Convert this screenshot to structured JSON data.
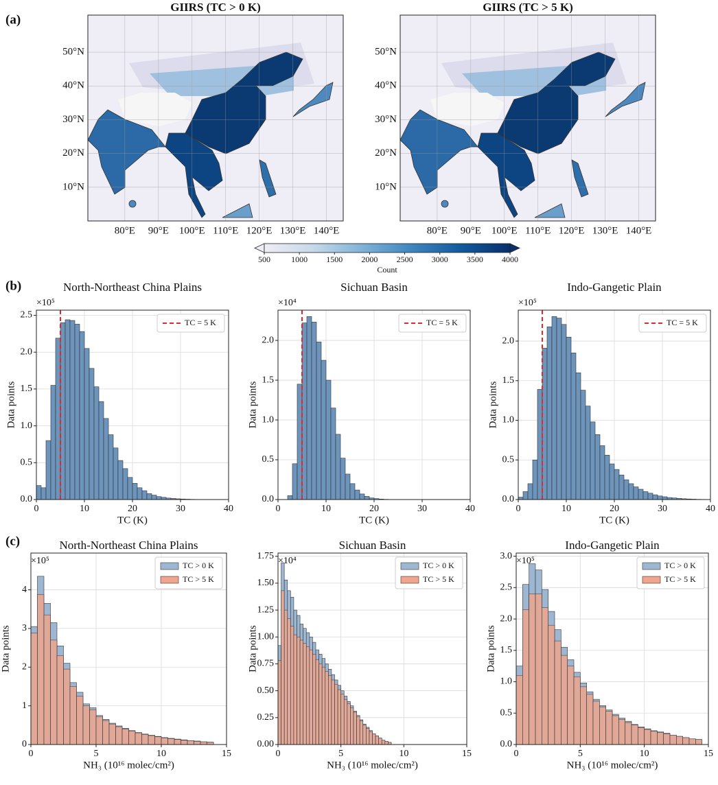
{
  "chart_data": [
    {
      "type": "map",
      "panel_label": "(a)",
      "title": "GIIRS (TC > 0 K)",
      "xlim": [
        69,
        145
      ],
      "ylim": [
        0,
        61
      ],
      "xticks": [
        {
          "value": 80,
          "label": "80°E"
        },
        {
          "value": 90,
          "label": "90°E"
        },
        {
          "value": 100,
          "label": "100°E"
        },
        {
          "value": 110,
          "label": "110°E"
        },
        {
          "value": 120,
          "label": "120°E"
        },
        {
          "value": 130,
          "label": "130°E"
        },
        {
          "value": 140,
          "label": "140°E"
        }
      ],
      "yticks": [
        {
          "value": 10,
          "label": "10°N"
        },
        {
          "value": 20,
          "label": "20°N"
        },
        {
          "value": 30,
          "label": "30°N"
        },
        {
          "value": 40,
          "label": "40°N"
        },
        {
          "value": 50,
          "label": "50°N"
        }
      ],
      "grid": true
    },
    {
      "type": "map",
      "title": "GIIRS (TC > 5 K)",
      "xlim": [
        69,
        145
      ],
      "ylim": [
        0,
        61
      ],
      "xticks": [
        {
          "value": 80,
          "label": "80°E"
        },
        {
          "value": 90,
          "label": "90°E"
        },
        {
          "value": 100,
          "label": "100°E"
        },
        {
          "value": 110,
          "label": "110°E"
        },
        {
          "value": 120,
          "label": "120°E"
        },
        {
          "value": 130,
          "label": "130°E"
        },
        {
          "value": 140,
          "label": "140°E"
        }
      ],
      "yticks": [
        {
          "value": 10,
          "label": "10°N"
        },
        {
          "value": 20,
          "label": "20°N"
        },
        {
          "value": 30,
          "label": "30°N"
        },
        {
          "value": 40,
          "label": "40°N"
        },
        {
          "value": 50,
          "label": "50°N"
        }
      ],
      "grid": true
    },
    {
      "type": "colorbar",
      "label": "Count",
      "lim": [
        500,
        4000
      ],
      "ticks": [
        500,
        1000,
        1500,
        2000,
        2500,
        3000,
        3500,
        4000
      ],
      "colors": [
        "#efedf5",
        "#c6d8ea",
        "#7fb2d8",
        "#3d86be",
        "#125a9f",
        "#08306b"
      ],
      "extend": "both"
    },
    {
      "type": "histogram",
      "panel_label": "(b)",
      "title": "North-Northeast China Plains",
      "xlabel": "TC (K)",
      "ylabel": "Data points",
      "y_multiplier": "×10⁵",
      "bins": [
        0,
        1,
        2,
        3,
        4,
        5,
        6,
        7,
        8,
        9,
        10,
        11,
        12,
        13,
        14,
        15,
        16,
        17,
        18,
        19,
        20,
        21,
        22,
        23,
        24,
        25,
        26,
        27,
        28,
        29,
        30,
        31,
        32,
        33,
        34,
        35,
        36,
        37,
        38,
        39,
        40
      ],
      "values": [
        0.19,
        0.16,
        0.8,
        1.55,
        2.19,
        2.4,
        2.44,
        2.43,
        2.38,
        2.28,
        2.05,
        1.78,
        1.53,
        1.33,
        1.1,
        0.88,
        0.7,
        0.53,
        0.42,
        0.3,
        0.22,
        0.16,
        0.12,
        0.08,
        0.06,
        0.04,
        0.03,
        0.02,
        0.015,
        0.01,
        0.007,
        0.005,
        0.003,
        0.002,
        0,
        0,
        0,
        0,
        0,
        0
      ],
      "color": "#6d94bb",
      "vline": {
        "value": 5,
        "name": "TC = 5 K",
        "color": "#e8262a"
      },
      "legend": "upper right",
      "xlim": [
        0,
        40
      ],
      "ylim": [
        0,
        2.57
      ],
      "xticks": [
        0,
        10,
        20,
        30,
        40
      ],
      "yticks": [
        {
          "value": 0,
          "label": "0.0"
        },
        {
          "value": 0.5,
          "label": "0.5"
        },
        {
          "value": 1,
          "label": "1.0"
        },
        {
          "value": 1.5,
          "label": "1.5"
        },
        {
          "value": 2,
          "label": "2.0"
        },
        {
          "value": 2.5,
          "label": "2.5"
        }
      ],
      "grid": true
    },
    {
      "type": "histogram",
      "title": "Sichuan Basin",
      "xlabel": "TC (K)",
      "ylabel": "Data points",
      "y_multiplier": "×10⁴",
      "bins": [
        0,
        1,
        2,
        3,
        4,
        5,
        6,
        7,
        8,
        9,
        10,
        11,
        12,
        13,
        14,
        15,
        16,
        17,
        18,
        19,
        20,
        21,
        22,
        23,
        24,
        25,
        26,
        27,
        28,
        29,
        30,
        31,
        32,
        33,
        34,
        35,
        36,
        37,
        38,
        39,
        40
      ],
      "values": [
        0,
        0,
        0.05,
        0.45,
        1.45,
        2.22,
        2.3,
        2.23,
        1.98,
        1.75,
        1.5,
        1.15,
        0.82,
        0.52,
        0.32,
        0.2,
        0.12,
        0.07,
        0.04,
        0.02,
        0.012,
        0.006,
        0.003,
        0,
        0,
        0,
        0,
        0,
        0,
        0,
        0,
        0,
        0,
        0,
        0,
        0,
        0,
        0,
        0,
        0
      ],
      "color": "#6d94bb",
      "vline": {
        "value": 5,
        "name": "TC = 5 K",
        "color": "#e8262a"
      },
      "legend": "upper right",
      "xlim": [
        0,
        40
      ],
      "ylim": [
        0,
        2.38
      ],
      "xticks": [
        0,
        10,
        20,
        30,
        40
      ],
      "yticks": [
        {
          "value": 0,
          "label": "0.0"
        },
        {
          "value": 0.5,
          "label": "0.5"
        },
        {
          "value": 1,
          "label": "1.0"
        },
        {
          "value": 1.5,
          "label": "1.5"
        },
        {
          "value": 2,
          "label": "2.0"
        }
      ],
      "grid": true
    },
    {
      "type": "histogram",
      "title": "Indo-Gangetic Plain",
      "xlabel": "TC (K)",
      "ylabel": "Data points",
      "y_multiplier": "×10⁵",
      "bins": [
        0,
        1,
        2,
        3,
        4,
        5,
        6,
        7,
        8,
        9,
        10,
        11,
        12,
        13,
        14,
        15,
        16,
        17,
        18,
        19,
        20,
        21,
        22,
        23,
        24,
        25,
        26,
        27,
        28,
        29,
        30,
        31,
        32,
        33,
        34,
        35,
        36,
        37,
        38,
        39,
        40
      ],
      "values": [
        0.03,
        0.1,
        0.2,
        0.5,
        1.39,
        1.91,
        2.18,
        2.31,
        2.29,
        2.21,
        2.05,
        1.85,
        1.6,
        1.38,
        1.18,
        0.98,
        0.82,
        0.68,
        0.56,
        0.45,
        0.38,
        0.31,
        0.25,
        0.2,
        0.16,
        0.13,
        0.1,
        0.08,
        0.06,
        0.045,
        0.035,
        0.025,
        0.02,
        0.015,
        0.01,
        0.007,
        0.005,
        0.003,
        0.002,
        0.001
      ],
      "color": "#6d94bb",
      "vline": {
        "value": 5,
        "name": "TC = 5 K",
        "color": "#e8262a"
      },
      "legend": "upper right",
      "xlim": [
        0,
        40
      ],
      "ylim": [
        0,
        2.39
      ],
      "xticks": [
        0,
        10,
        20,
        30,
        40
      ],
      "yticks": [
        {
          "value": 0,
          "label": "0.0"
        },
        {
          "value": 0.5,
          "label": "0.5"
        },
        {
          "value": 1,
          "label": "1.0"
        },
        {
          "value": 1.5,
          "label": "1.5"
        },
        {
          "value": 2,
          "label": "2.0"
        }
      ],
      "grid": true
    },
    {
      "type": "histogram",
      "panel_label": "(c)",
      "title": "North-Northeast China Plains",
      "xlabel": "NH₃ (10¹⁶ molec/cm²)",
      "ylabel": "Data points",
      "y_multiplier": "×10⁵",
      "bins": [
        0,
        0.5,
        1,
        1.5,
        2,
        2.5,
        3,
        3.5,
        4,
        4.5,
        5,
        5.5,
        6,
        6.5,
        7,
        7.5,
        8,
        8.5,
        9,
        9.5,
        10,
        10.5,
        11,
        11.5,
        12,
        12.5,
        13,
        13.5,
        14
      ],
      "series": [
        {
          "name": "TC > 0 K",
          "color": "#9db7d3",
          "values": [
            3.05,
            4.35,
            3.65,
            3.15,
            2.55,
            2.1,
            1.6,
            1.35,
            1.05,
            0.95,
            0.75,
            0.65,
            0.55,
            0.48,
            0.42,
            0.36,
            0.31,
            0.27,
            0.24,
            0.21,
            0.18,
            0.16,
            0.14,
            0.12,
            0.1,
            0.09,
            0.07,
            0.06
          ]
        },
        {
          "name": "TC > 5 K",
          "color": "#f0a58c",
          "values": [
            2.88,
            3.88,
            3.35,
            2.7,
            2.3,
            1.95,
            1.5,
            1.25,
            1.0,
            0.9,
            0.72,
            0.62,
            0.53,
            0.46,
            0.4,
            0.35,
            0.3,
            0.26,
            0.23,
            0.2,
            0.17,
            0.15,
            0.13,
            0.11,
            0.1,
            0.08,
            0.07,
            0.06
          ]
        }
      ],
      "legend": "upper right",
      "xlim": [
        0,
        15
      ],
      "ylim": [
        0,
        4.95
      ],
      "xticks": [
        0,
        5,
        10,
        15
      ],
      "yticks": [
        0,
        1,
        2,
        3,
        4
      ],
      "grid": true
    },
    {
      "type": "histogram",
      "title": "Sichuan Basin",
      "xlabel": "NH₃ (10¹⁶ molec/cm²)",
      "ylabel": "Data points",
      "y_multiplier": "×10⁴",
      "bins": [
        0,
        0.25,
        0.5,
        0.75,
        1,
        1.25,
        1.5,
        1.75,
        2,
        2.25,
        2.5,
        2.75,
        3,
        3.25,
        3.5,
        3.75,
        4,
        4.25,
        4.5,
        4.75,
        5,
        5.25,
        5.5,
        5.75,
        6,
        6.25,
        6.5,
        6.75,
        7,
        7.25,
        7.5,
        7.75,
        8,
        8.25,
        8.5,
        8.75,
        9
      ],
      "series": [
        {
          "name": "TC > 0 K",
          "color": "#9db7d3",
          "values": [
            0.92,
            1.69,
            1.53,
            1.43,
            1.37,
            1.25,
            1.2,
            1.12,
            1.08,
            1.04,
            1.0,
            0.95,
            0.88,
            0.84,
            0.8,
            0.75,
            0.7,
            0.65,
            0.6,
            0.55,
            0.5,
            0.45,
            0.4,
            0.36,
            0.31,
            0.27,
            0.23,
            0.19,
            0.16,
            0.13,
            0.1,
            0.08,
            0.06,
            0.04,
            0.03,
            0.02
          ]
        },
        {
          "name": "TC > 5 K",
          "color": "#f0a58c",
          "values": [
            0.78,
            1.43,
            1.25,
            1.17,
            1.1,
            1.02,
            1.0,
            0.97,
            0.94,
            0.91,
            0.88,
            0.84,
            0.79,
            0.75,
            0.72,
            0.68,
            0.64,
            0.6,
            0.56,
            0.51,
            0.47,
            0.42,
            0.38,
            0.34,
            0.3,
            0.26,
            0.22,
            0.18,
            0.15,
            0.12,
            0.1,
            0.08,
            0.06,
            0.04,
            0.03,
            0.02
          ]
        }
      ],
      "legend": "upper right",
      "xlim": [
        0,
        15
      ],
      "ylim": [
        0,
        1.78
      ],
      "xticks": [
        0,
        5,
        10,
        15
      ],
      "yticks": [
        {
          "value": 0,
          "label": "0.00"
        },
        {
          "value": 0.25,
          "label": "0.25"
        },
        {
          "value": 0.5,
          "label": "0.50"
        },
        {
          "value": 0.75,
          "label": "0.75"
        },
        {
          "value": 1,
          "label": "1.00"
        },
        {
          "value": 1.25,
          "label": "1.25"
        },
        {
          "value": 1.5,
          "label": "1.50"
        },
        {
          "value": 1.75,
          "label": "1.75"
        }
      ],
      "grid": true
    },
    {
      "type": "histogram",
      "title": "Indo-Gangetic Plain",
      "xlabel": "NH₃ (10¹⁶ molec/cm²)",
      "ylabel": "Data points",
      "y_multiplier": "×10⁵",
      "bins": [
        0,
        0.5,
        1,
        1.5,
        2,
        2.5,
        3,
        3.5,
        4,
        4.5,
        5,
        5.5,
        6,
        6.5,
        7,
        7.5,
        8,
        8.5,
        9,
        9.5,
        10,
        10.5,
        11,
        11.5,
        12,
        12.5,
        13,
        13.5,
        14,
        14.5
      ],
      "series": [
        {
          "name": "TC > 0 K",
          "color": "#9db7d3",
          "values": [
            1.25,
            2.55,
            2.88,
            2.78,
            2.47,
            2.12,
            1.83,
            1.55,
            1.35,
            1.15,
            0.98,
            0.84,
            0.72,
            0.62,
            0.55,
            0.48,
            0.42,
            0.37,
            0.32,
            0.28,
            0.25,
            0.22,
            0.2,
            0.18,
            0.15,
            0.13,
            0.11,
            0.09,
            0.08
          ]
        },
        {
          "name": "TC > 5 K",
          "color": "#f0a58c",
          "values": [
            1.1,
            2.15,
            2.4,
            2.4,
            2.18,
            1.9,
            1.65,
            1.42,
            1.25,
            1.08,
            0.92,
            0.8,
            0.69,
            0.6,
            0.53,
            0.46,
            0.4,
            0.35,
            0.31,
            0.27,
            0.24,
            0.21,
            0.19,
            0.17,
            0.15,
            0.13,
            0.11,
            0.09,
            0.08
          ]
        }
      ],
      "legend": "upper right",
      "xlim": [
        0,
        15
      ],
      "ylim": [
        0,
        3.05
      ],
      "xticks": [
        0,
        5,
        10,
        15
      ],
      "yticks": [
        {
          "value": 0,
          "label": "0.0"
        },
        {
          "value": 0.5,
          "label": "0.5"
        },
        {
          "value": 1,
          "label": "1.0"
        },
        {
          "value": 1.5,
          "label": "1.5"
        },
        {
          "value": 2,
          "label": "2.0"
        },
        {
          "value": 2.5,
          "label": "2.5"
        },
        {
          "value": 3,
          "label": "3.0"
        }
      ],
      "grid": true
    }
  ]
}
